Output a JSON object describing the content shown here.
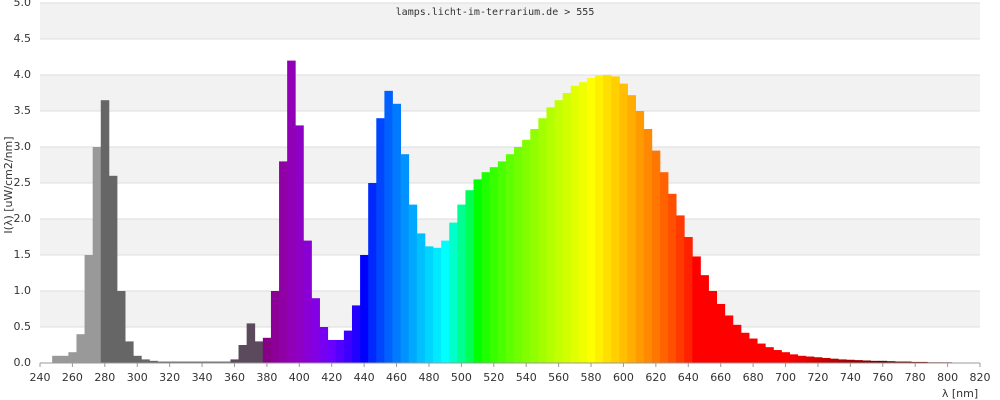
{
  "chart_data": {
    "type": "spectrum",
    "title": "lamps.licht-im-terrarium.de > 555",
    "xlabel": "λ [nm]",
    "ylabel": "I(λ)  [uW/cm2/nm]",
    "x": [
      250,
      255,
      260,
      265,
      270,
      275,
      280,
      285,
      290,
      295,
      300,
      305,
      310,
      315,
      320,
      325,
      330,
      335,
      340,
      345,
      350,
      355,
      360,
      365,
      370,
      375,
      380,
      385,
      390,
      395,
      400,
      405,
      410,
      415,
      420,
      425,
      430,
      435,
      440,
      445,
      450,
      455,
      460,
      465,
      470,
      475,
      480,
      485,
      490,
      495,
      500,
      505,
      510,
      515,
      520,
      525,
      530,
      535,
      540,
      545,
      550,
      555,
      560,
      565,
      570,
      575,
      580,
      585,
      590,
      595,
      600,
      605,
      610,
      615,
      620,
      625,
      630,
      635,
      640,
      645,
      650,
      655,
      660,
      665,
      670,
      675,
      680,
      685,
      690,
      695,
      700,
      705,
      710,
      715,
      720,
      725,
      730,
      735,
      740,
      745,
      750,
      755,
      760,
      765,
      770,
      775,
      780,
      785,
      790,
      795,
      800
    ],
    "values": [
      0.1,
      0.1,
      0.15,
      0.4,
      1.5,
      3.0,
      3.65,
      2.6,
      1.0,
      0.3,
      0.1,
      0.05,
      0.03,
      0.02,
      0.02,
      0.02,
      0.02,
      0.02,
      0.02,
      0.02,
      0.02,
      0.02,
      0.05,
      0.25,
      0.55,
      0.3,
      0.35,
      1.0,
      2.8,
      4.2,
      3.3,
      1.7,
      0.9,
      0.5,
      0.32,
      0.32,
      0.45,
      0.8,
      1.5,
      2.5,
      3.4,
      3.78,
      3.6,
      2.9,
      2.2,
      1.8,
      1.62,
      1.6,
      1.7,
      1.95,
      2.2,
      2.4,
      2.55,
      2.65,
      2.72,
      2.8,
      2.9,
      3.0,
      3.1,
      3.25,
      3.4,
      3.55,
      3.65,
      3.75,
      3.85,
      3.9,
      3.96,
      3.99,
      4.0,
      3.98,
      3.88,
      3.72,
      3.5,
      3.25,
      2.95,
      2.65,
      2.35,
      2.05,
      1.75,
      1.48,
      1.22,
      1.0,
      0.82,
      0.66,
      0.53,
      0.42,
      0.34,
      0.27,
      0.22,
      0.18,
      0.15,
      0.12,
      0.1,
      0.09,
      0.08,
      0.07,
      0.06,
      0.05,
      0.045,
      0.04,
      0.035,
      0.03,
      0.03,
      0.025,
      0.02,
      0.02,
      0.015,
      0.015,
      0.01,
      0.01,
      0.01
    ],
    "xlim": [
      240,
      820
    ],
    "xticks": [
      240,
      260,
      280,
      300,
      320,
      340,
      360,
      380,
      400,
      420,
      440,
      460,
      480,
      500,
      520,
      540,
      560,
      580,
      600,
      620,
      640,
      660,
      680,
      700,
      720,
      740,
      760,
      780,
      800,
      820
    ],
    "ylim": [
      0,
      5
    ],
    "yticks": [
      {
        "value": 0,
        "label": "0.0"
      },
      0.5,
      {
        "value": 1,
        "label": "1.0"
      },
      1.5,
      {
        "value": 2,
        "label": "2.0"
      },
      2.5,
      {
        "value": 3,
        "label": "3.0"
      },
      3.5,
      {
        "value": 4,
        "label": "4.0"
      },
      4.5,
      {
        "value": 5,
        "label": "5.0"
      }
    ],
    "grid": true
  }
}
